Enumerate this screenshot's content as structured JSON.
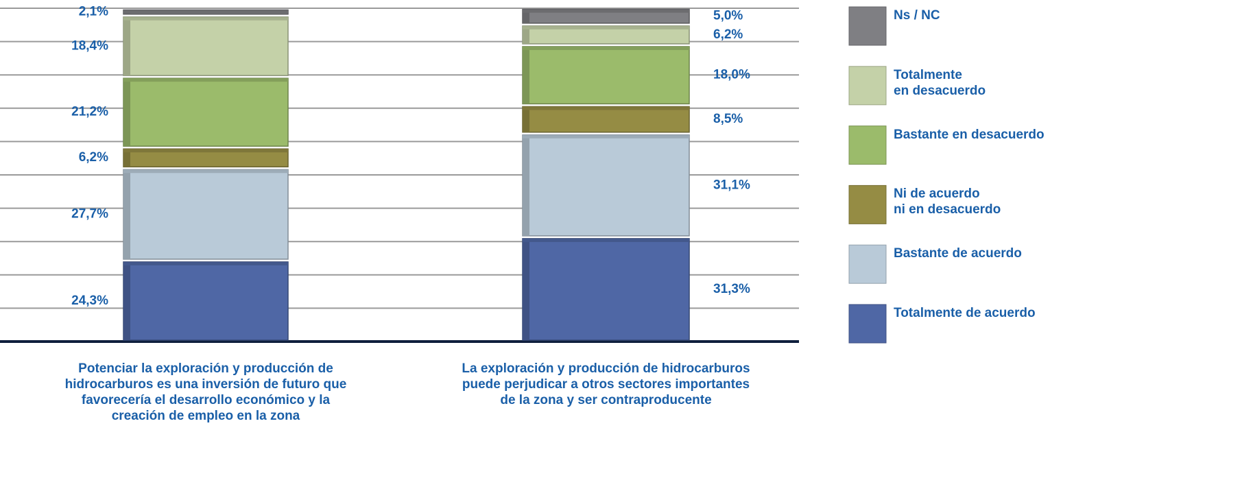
{
  "chart_data": {
    "type": "stacked_bar",
    "categories": [
      "Potenciar la exploración y producción de\nhidrocarburos es una inversión de futuro que\nfavorecería el desarrollo económico y la\ncreación de empleo en la zona",
      "La exploración y producción de hidrocarburos\npuede perjudicar a otros sectores importantes\nde la zona y ser contraproducente"
    ],
    "series": [
      {
        "name": "Totalmente de acuerdo",
        "color": "#4f67a5",
        "values": [
          24.3,
          31.3
        ],
        "value_labels": [
          "24,3%",
          "31,3%"
        ]
      },
      {
        "name": "Bastante de acuerdo",
        "color": "#b9cad8",
        "values": [
          27.7,
          31.1
        ],
        "value_labels": [
          "27,7%",
          "31,1%"
        ]
      },
      {
        "name": "Ni de acuerdo\nni en desacuerdo",
        "color": "#958c44",
        "values": [
          6.2,
          8.5
        ],
        "value_labels": [
          "6,2%",
          "8,5%"
        ]
      },
      {
        "name": "Bastante en desacuerdo",
        "color": "#9bbb6b",
        "values": [
          21.2,
          18.0
        ],
        "value_labels": [
          "21,2%",
          "18,0%"
        ]
      },
      {
        "name": "Totalmente\nen desacuerdo",
        "color": "#c4d1a8",
        "values": [
          18.4,
          6.2
        ],
        "value_labels": [
          "18,4%",
          "6,2%"
        ]
      },
      {
        "name": "Ns / NC",
        "color": "#7f7f83",
        "values": [
          2.1,
          5.0
        ],
        "value_labels": [
          "2,1%",
          "5,0%"
        ]
      }
    ],
    "ylim": [
      0,
      100
    ],
    "yticks": [
      0,
      10,
      20,
      30,
      40,
      50,
      60,
      70,
      80,
      90,
      100
    ],
    "grid": true,
    "legend": "right"
  }
}
